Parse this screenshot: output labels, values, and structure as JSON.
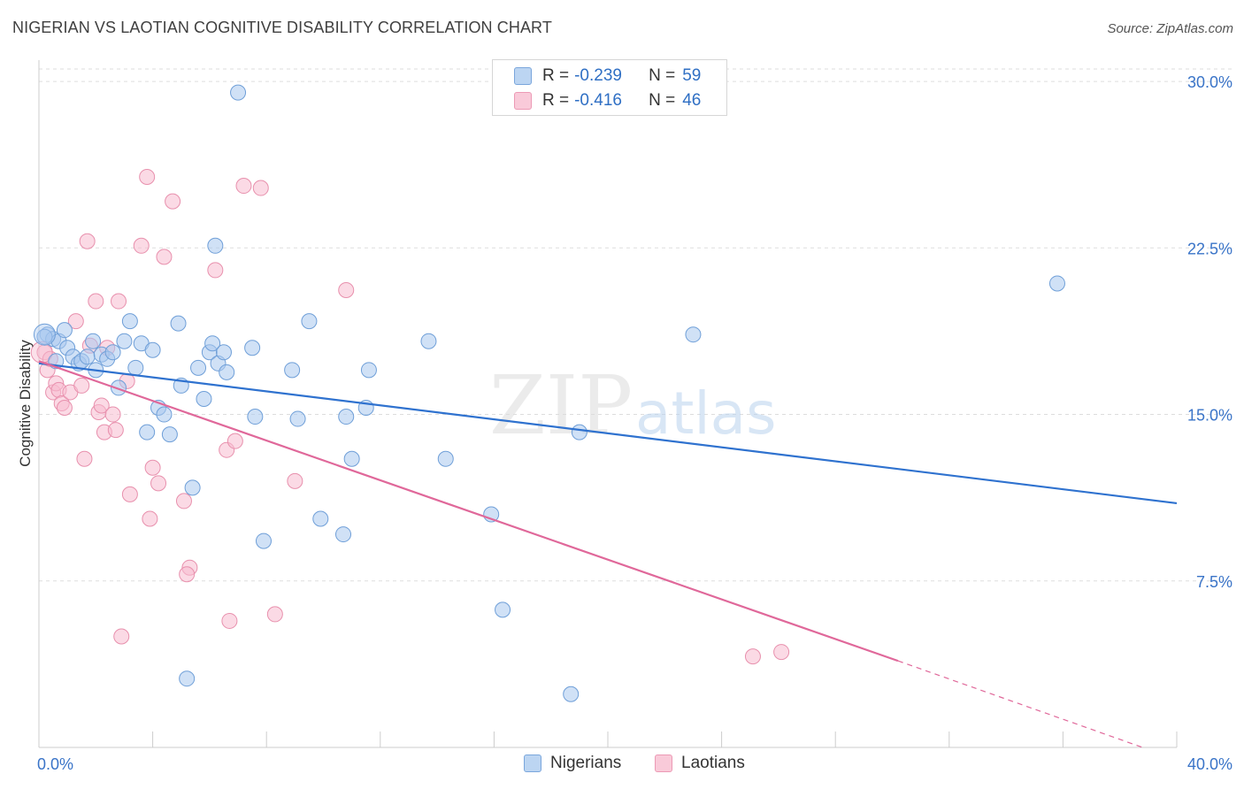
{
  "header": {
    "title": "NIGERIAN VS LAOTIAN COGNITIVE DISABILITY CORRELATION CHART",
    "source": "Source: ZipAtlas.com"
  },
  "watermark": {
    "zip": "ZIP",
    "atlas": "atlas"
  },
  "legend": {
    "rows": [
      {
        "r_label": "R =",
        "r_value": "-0.239",
        "n_label": "N =",
        "n_value": "59"
      },
      {
        "r_label": "R =",
        "r_value": "-0.416",
        "n_label": "N =",
        "n_value": "46"
      }
    ]
  },
  "bottom_legend": {
    "nigerians": "Nigerians",
    "laotians": "Laotians"
  },
  "colors": {
    "nigerians_fill": "#a9c8ef",
    "nigerians_stroke": "#6f9fd8",
    "nigerians_line": "#2f72cf",
    "laotians_fill": "#f7bcd0",
    "laotians_stroke": "#e890ad",
    "laotians_line": "#e0689a",
    "axis_label": "#3a74c8"
  },
  "chart_data": {
    "type": "scatter",
    "title": "NIGERIAN VS LAOTIAN COGNITIVE DISABILITY CORRELATION CHART",
    "xlabel": "",
    "ylabel": "Cognitive Disability",
    "xlim": [
      0,
      40
    ],
    "ylim": [
      0,
      30.8
    ],
    "x_tick_labels": [
      "0.0%",
      "40.0%"
    ],
    "y_tick_values": [
      7.5,
      15.0,
      22.5,
      30.0
    ],
    "y_tick_labels": [
      "7.5%",
      "15.0%",
      "22.5%",
      "30.0%"
    ],
    "grid": true,
    "legend_position": "top-center",
    "series": [
      {
        "name": "Nigerians",
        "r": -0.239,
        "n": 59,
        "trend": {
          "x": [
            0,
            40
          ],
          "y": [
            17.3,
            11.0
          ]
        },
        "points": [
          [
            0.3,
            18.6
          ],
          [
            0.5,
            18.4
          ],
          [
            0.7,
            18.3
          ],
          [
            0.9,
            18.8
          ],
          [
            1.0,
            18.0
          ],
          [
            1.2,
            17.6
          ],
          [
            1.4,
            17.3
          ],
          [
            1.5,
            17.4
          ],
          [
            1.7,
            17.6
          ],
          [
            1.9,
            18.3
          ],
          [
            2.0,
            17.0
          ],
          [
            2.2,
            17.7
          ],
          [
            2.4,
            17.5
          ],
          [
            2.6,
            17.8
          ],
          [
            2.8,
            16.2
          ],
          [
            3.0,
            18.3
          ],
          [
            3.2,
            19.2
          ],
          [
            3.4,
            17.1
          ],
          [
            3.6,
            18.2
          ],
          [
            3.8,
            14.2
          ],
          [
            4.0,
            17.9
          ],
          [
            4.2,
            15.3
          ],
          [
            4.4,
            15.0
          ],
          [
            4.6,
            14.1
          ],
          [
            4.9,
            19.1
          ],
          [
            5.0,
            16.3
          ],
          [
            5.2,
            3.1
          ],
          [
            5.4,
            11.7
          ],
          [
            5.6,
            17.1
          ],
          [
            5.8,
            15.7
          ],
          [
            6.0,
            17.8
          ],
          [
            6.1,
            18.2
          ],
          [
            6.2,
            22.6
          ],
          [
            6.3,
            17.3
          ],
          [
            6.5,
            17.8
          ],
          [
            6.6,
            16.9
          ],
          [
            7.0,
            29.5
          ],
          [
            7.5,
            18.0
          ],
          [
            7.6,
            14.9
          ],
          [
            7.9,
            9.3
          ],
          [
            8.9,
            17.0
          ],
          [
            9.1,
            14.8
          ],
          [
            9.5,
            19.2
          ],
          [
            9.9,
            10.3
          ],
          [
            10.7,
            9.6
          ],
          [
            10.8,
            14.9
          ],
          [
            11.0,
            13.0
          ],
          [
            11.5,
            15.3
          ],
          [
            11.6,
            17.0
          ],
          [
            13.7,
            18.3
          ],
          [
            14.3,
            13.0
          ],
          [
            15.9,
            10.5
          ],
          [
            16.3,
            6.2
          ],
          [
            18.7,
            2.4
          ],
          [
            19.0,
            14.2
          ],
          [
            23.0,
            18.6
          ],
          [
            35.8,
            20.9
          ],
          [
            0.2,
            18.5
          ],
          [
            0.6,
            17.4
          ]
        ]
      },
      {
        "name": "Laotians",
        "r": -0.416,
        "n": 46,
        "trend": {
          "x": [
            0,
            30.2
          ],
          "y": [
            17.4,
            3.9
          ]
        },
        "trend_dashed": {
          "x": [
            30.2,
            38.8
          ],
          "y": [
            3.9,
            0.0
          ]
        },
        "points": [
          [
            0.2,
            17.8
          ],
          [
            0.3,
            17.0
          ],
          [
            0.4,
            17.5
          ],
          [
            0.5,
            16.0
          ],
          [
            0.6,
            16.4
          ],
          [
            0.7,
            16.1
          ],
          [
            0.8,
            15.5
          ],
          [
            0.9,
            15.3
          ],
          [
            1.1,
            16.0
          ],
          [
            1.3,
            19.2
          ],
          [
            1.5,
            16.3
          ],
          [
            1.6,
            13.0
          ],
          [
            1.7,
            22.8
          ],
          [
            1.8,
            18.1
          ],
          [
            2.0,
            20.1
          ],
          [
            2.1,
            15.1
          ],
          [
            2.2,
            15.4
          ],
          [
            2.3,
            14.2
          ],
          [
            2.4,
            18.0
          ],
          [
            2.6,
            15.0
          ],
          [
            2.7,
            14.3
          ],
          [
            2.8,
            20.1
          ],
          [
            2.9,
            5.0
          ],
          [
            3.1,
            16.5
          ],
          [
            3.2,
            11.4
          ],
          [
            3.6,
            22.6
          ],
          [
            3.8,
            25.7
          ],
          [
            3.9,
            10.3
          ],
          [
            4.0,
            12.6
          ],
          [
            4.2,
            11.9
          ],
          [
            4.4,
            22.1
          ],
          [
            4.7,
            24.6
          ],
          [
            5.1,
            11.1
          ],
          [
            5.3,
            8.1
          ],
          [
            5.2,
            7.8
          ],
          [
            6.2,
            21.5
          ],
          [
            6.6,
            13.4
          ],
          [
            6.7,
            5.7
          ],
          [
            6.9,
            13.8
          ],
          [
            7.2,
            25.3
          ],
          [
            7.8,
            25.2
          ],
          [
            8.3,
            6.0
          ],
          [
            9.0,
            12.0
          ],
          [
            10.8,
            20.6
          ],
          [
            25.1,
            4.1
          ],
          [
            26.1,
            4.3
          ]
        ]
      }
    ]
  }
}
